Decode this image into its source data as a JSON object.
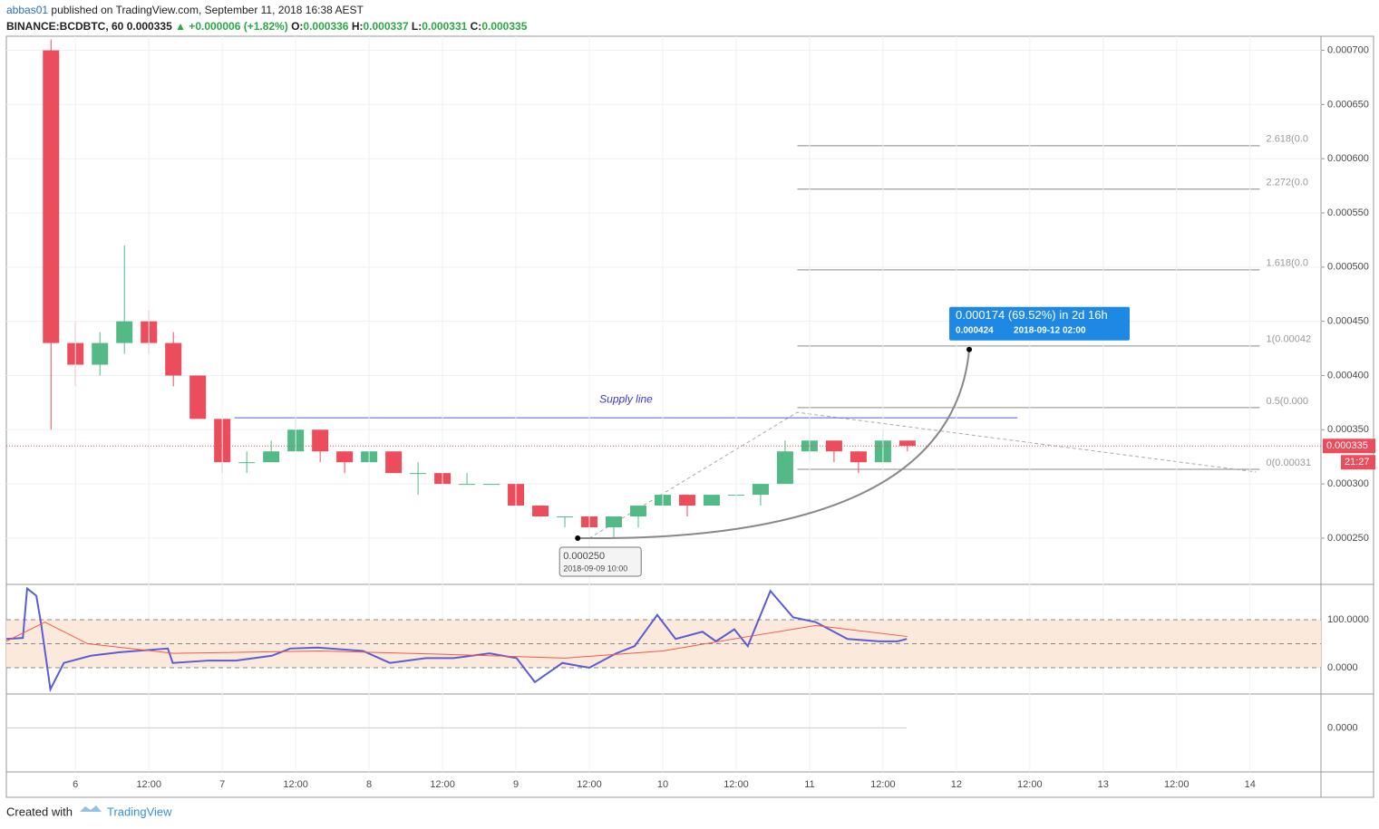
{
  "header": {
    "author": "abbas01",
    "published": "published on TradingView.com, September 11, 2018 16:38 AEST",
    "symbol": "BINANCE:BCDBTC, 60",
    "last": "0.000335",
    "change": "▲ +0.000006 (+1.82%)",
    "ohlc": [
      {
        "key": "O:",
        "value": "0.000336"
      },
      {
        "key": "H:",
        "value": "0.000337"
      },
      {
        "key": "L:",
        "value": "0.000331"
      },
      {
        "key": "C:",
        "value": "0.000335"
      }
    ]
  },
  "chart_data": {
    "type": "candlestick",
    "x": [
      -4,
      0,
      4,
      8,
      12,
      16,
      20,
      24,
      28,
      32,
      36,
      40,
      44,
      48,
      52,
      56,
      60,
      64,
      68,
      72,
      76,
      80,
      84,
      88,
      92,
      96,
      100,
      104,
      108,
      112,
      116,
      120,
      124,
      128,
      132,
      136
    ],
    "open": [
      0.0007,
      0.00043,
      0.00041,
      0.00043,
      0.00045,
      0.00043,
      0.0004,
      0.00036,
      0.00032,
      0.00032,
      0.00033,
      0.00035,
      0.00033,
      0.00032,
      0.00033,
      0.00031,
      0.00031,
      0.0003,
      0.0003,
      0.0003,
      0.00028,
      0.00027,
      0.00027,
      0.00026,
      0.00027,
      0.00028,
      0.00029,
      0.00028,
      0.00029,
      0.00029,
      0.0003,
      0.00033,
      0.00034,
      0.00033,
      0.00032,
      0.00034
    ],
    "high": [
      0.00071,
      0.00045,
      0.00044,
      0.00052,
      0.00046,
      0.00044,
      0.0004,
      0.00036,
      0.00033,
      0.00034,
      0.00036,
      0.00035,
      0.00033,
      0.00033,
      0.00033,
      0.00032,
      0.00031,
      0.00031,
      0.0003,
      0.0003,
      0.00028,
      0.00027,
      0.00027,
      0.00027,
      0.00028,
      0.0003,
      0.00029,
      0.00029,
      0.00029,
      0.0003,
      0.00034,
      0.00036,
      0.00034,
      0.00033,
      0.00035,
      0.00034
    ],
    "low": [
      0.00035,
      0.00039,
      0.0004,
      0.00042,
      0.00042,
      0.00039,
      0.00036,
      0.00031,
      0.00031,
      0.00032,
      0.00033,
      0.00032,
      0.00031,
      0.00032,
      0.00031,
      0.00029,
      0.0003,
      0.0003,
      0.0003,
      0.00028,
      0.00027,
      0.00026,
      0.00025,
      0.00025,
      0.00026,
      0.00028,
      0.00027,
      0.00028,
      0.00028,
      0.00028,
      0.0003,
      0.00032,
      0.00032,
      0.00031,
      0.00032,
      0.00033
    ],
    "close": [
      0.00043,
      0.00041,
      0.00043,
      0.00045,
      0.00043,
      0.0004,
      0.00036,
      0.00032,
      0.00032,
      0.00033,
      0.00035,
      0.00033,
      0.00032,
      0.00033,
      0.00031,
      0.00031,
      0.0003,
      0.0003,
      0.0003,
      0.00028,
      0.00027,
      0.00027,
      0.00026,
      0.00027,
      0.00028,
      0.00029,
      0.00028,
      0.00029,
      0.00029,
      0.0003,
      0.00033,
      0.00034,
      0.00033,
      0.00032,
      0.00034,
      0.000335
    ],
    "up_color": "#53b987",
    "down_color": "#eb4d5c",
    "xlim": [
      -11.3,
      203.6
    ],
    "ylim": [
      0.000209,
      0.000713
    ],
    "xticks": [
      {
        "value": 0,
        "label": "6"
      },
      {
        "value": 12,
        "label": "12:00"
      },
      {
        "value": 24,
        "label": "7"
      },
      {
        "value": 36,
        "label": "12:00"
      },
      {
        "value": 48,
        "label": "8"
      },
      {
        "value": 60,
        "label": "12:00"
      },
      {
        "value": 72,
        "label": "9"
      },
      {
        "value": 84,
        "label": "12:00"
      },
      {
        "value": 96,
        "label": "10"
      },
      {
        "value": 108,
        "label": "12:00"
      },
      {
        "value": 120,
        "label": "11"
      },
      {
        "value": 132,
        "label": "12:00"
      },
      {
        "value": 144,
        "label": "12"
      },
      {
        "value": 156,
        "label": "12:00"
      },
      {
        "value": 168,
        "label": "13"
      },
      {
        "value": 180,
        "label": "12:00"
      },
      {
        "value": 192,
        "label": "14"
      }
    ],
    "yticks": [
      {
        "value": 0.00025,
        "label": "0.000250"
      },
      {
        "value": 0.0003,
        "label": "0.000300"
      },
      {
        "value": 0.00035,
        "label": "0.000350"
      },
      {
        "value": 0.0004,
        "label": "0.000400"
      },
      {
        "value": 0.00045,
        "label": "0.000450"
      },
      {
        "value": 0.0005,
        "label": "0.000500"
      },
      {
        "value": 0.00055,
        "label": "0.000550"
      },
      {
        "value": 0.0006,
        "label": "0.000600"
      },
      {
        "value": 0.00065,
        "label": "0.000650"
      },
      {
        "value": 0.0007,
        "label": "0.000700"
      }
    ],
    "grid": true,
    "current_price": {
      "value": 0.000335,
      "label": "0.000335",
      "countdown": "21:27"
    },
    "supply_line": {
      "label": "Supply line",
      "price": 0.000361,
      "x": [
        26,
        154
      ]
    },
    "fib": {
      "x": [
        118,
        193.6
      ],
      "levels": [
        {
          "label": "2.618(0.0",
          "price": 0.000612
        },
        {
          "label": "2.272(0.0",
          "price": 0.000572
        },
        {
          "label": "1.618(0.0",
          "price": 0.0004975
        },
        {
          "label": "1(0.00042",
          "price": 0.0004273
        },
        {
          "label": "0.5(0.000",
          "price": 0.0003704
        },
        {
          "label": "0(0.00031",
          "price": 0.0003135
        }
      ]
    },
    "trend_line": {
      "x": [
        84,
        118,
        193
      ],
      "y": [
        0.00025,
        0.000366,
        0.000311
      ]
    },
    "projection": {
      "x": [
        82.1,
        146.1
      ],
      "y": [
        0.00025,
        0.000424
      ],
      "label": "0.000174 (69.52%) in 2d 16h",
      "target": "0.000424",
      "target_time": "2018-09-12  02:00",
      "start": "0.000250",
      "start_time": "2018-09-09 10:00"
    },
    "oscillator": {
      "ylim": [
        -52.8,
        173.6
      ],
      "levels": [
        100,
        50,
        0
      ],
      "yticks": [
        {
          "value": 100,
          "label": "100.0000"
        },
        {
          "value": 0,
          "label": "0.0000"
        }
      ],
      "series": [
        {
          "color": "#5b5bd6",
          "x": [
            -11.3,
            -8.6,
            -7.9,
            -6.4,
            -5.6,
            -4.1,
            -1.9,
            2.5,
            7.0,
            15.1,
            15.9,
            21.8,
            26.2,
            32.1,
            35.1,
            39.6,
            47.0,
            51.4,
            57.3,
            61.8,
            67.7,
            72.1,
            75.1,
            79.6,
            84.0,
            88.4,
            91.4,
            95.1,
            98.1,
            102.5,
            104.7,
            107.7,
            109.9,
            113.6,
            117.3,
            121.0,
            126.2,
            131.4,
            134.4,
            135.9
          ],
          "values": [
            60,
            62,
            165,
            150,
            90,
            -45,
            10,
            25,
            32,
            40,
            10,
            15,
            15,
            25,
            40,
            42,
            35,
            10,
            20,
            20,
            30,
            20,
            -30,
            10,
            0,
            30,
            45,
            110,
            60,
            75,
            55,
            80,
            45,
            160,
            105,
            95,
            60,
            55,
            55,
            60
          ]
        },
        {
          "color": "#f05a4a",
          "x": [
            -11.3,
            -5,
            2,
            16,
            40,
            60,
            80,
            96,
            110,
            121,
            136
          ],
          "values": [
            55,
            95,
            50,
            30,
            35,
            28,
            20,
            35,
            65,
            88,
            65
          ]
        }
      ]
    },
    "macd": {
      "ylim": [
        -8e-06,
        6e-06
      ],
      "yticks": [
        {
          "value": 0,
          "label": "0.0000"
        }
      ]
    },
    "footer": {
      "created": "Created with",
      "brand": "TradingView"
    }
  }
}
